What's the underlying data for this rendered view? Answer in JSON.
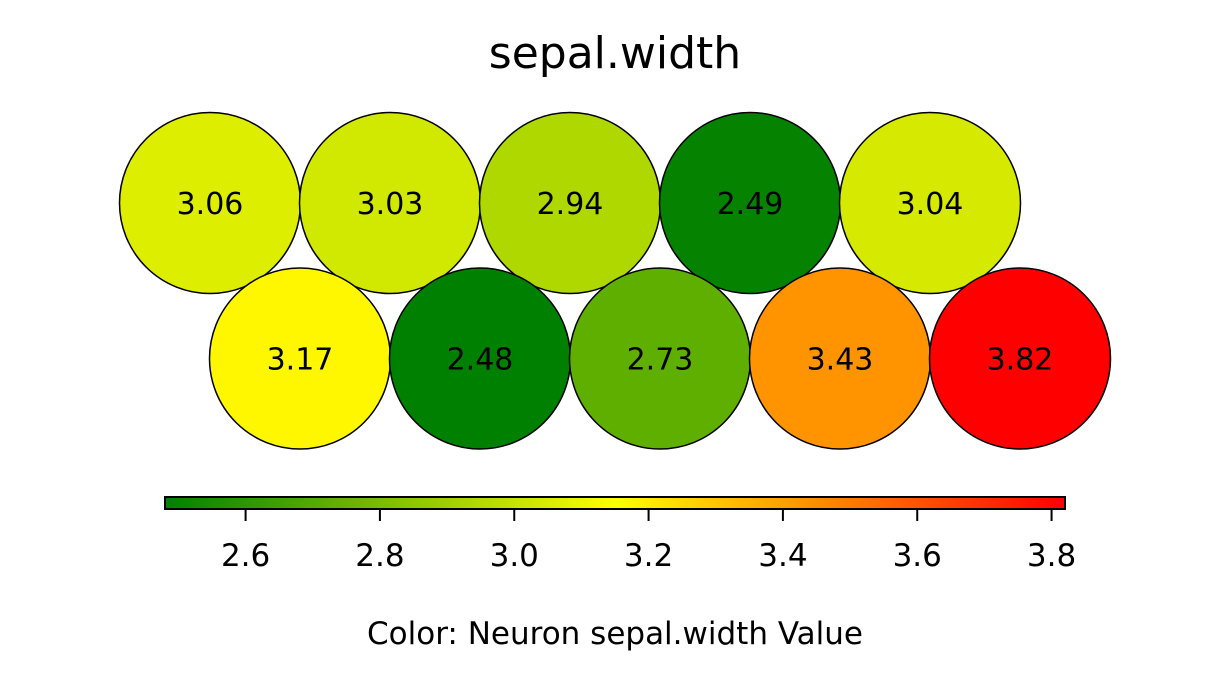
{
  "chart_data": {
    "type": "heatmap",
    "title": "sepal.width",
    "grid": "hexagonal self-organizing map, 2 rows x 5 columns",
    "rows": [
      [
        {
          "value": 3.06,
          "label": "3.06"
        },
        {
          "value": 3.03,
          "label": "3.03"
        },
        {
          "value": 2.94,
          "label": "2.94"
        },
        {
          "value": 2.49,
          "label": "2.49"
        },
        {
          "value": 3.04,
          "label": "3.04"
        }
      ],
      [
        {
          "value": 3.17,
          "label": "3.17"
        },
        {
          "value": 2.48,
          "label": "2.48"
        },
        {
          "value": 2.73,
          "label": "2.73"
        },
        {
          "value": 3.43,
          "label": "3.43"
        },
        {
          "value": 3.82,
          "label": "3.82"
        }
      ]
    ],
    "colorbar": {
      "label": "Color: Neuron sepal.width Value",
      "range": [
        2.48,
        3.82
      ],
      "ticks": [
        2.6,
        2.8,
        3.0,
        3.2,
        3.4,
        3.6,
        3.8
      ],
      "tick_labels": [
        "2.6",
        "2.8",
        "3.0",
        "3.2",
        "3.4",
        "3.6",
        "3.8"
      ],
      "colors": [
        "#008000",
        "#ffff00",
        "#ff0000"
      ]
    }
  }
}
